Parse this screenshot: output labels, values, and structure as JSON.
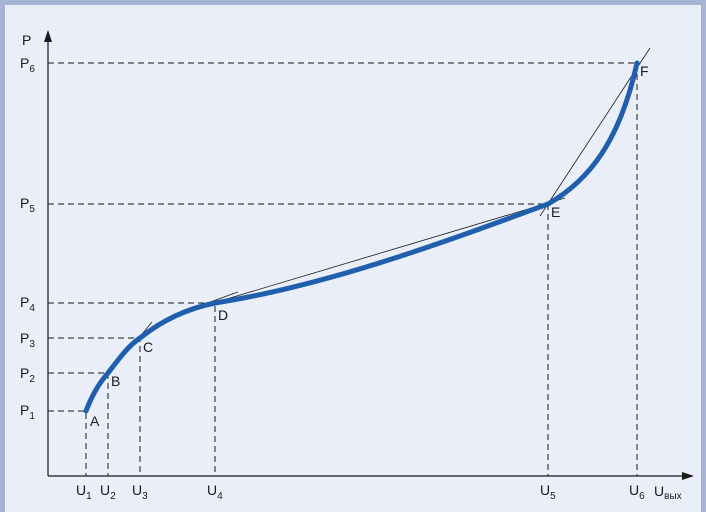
{
  "axes": {
    "y_label": "P",
    "x_label": "U",
    "x_label_sub": "вых"
  },
  "y_ticks": [
    {
      "main": "P",
      "sub": "1"
    },
    {
      "main": "P",
      "sub": "2"
    },
    {
      "main": "P",
      "sub": "3"
    },
    {
      "main": "P",
      "sub": "4"
    },
    {
      "main": "P",
      "sub": "5"
    },
    {
      "main": "P",
      "sub": "6"
    }
  ],
  "x_ticks": [
    {
      "main": "U",
      "sub": "1"
    },
    {
      "main": "U",
      "sub": "2"
    },
    {
      "main": "U",
      "sub": "3"
    },
    {
      "main": "U",
      "sub": "4"
    },
    {
      "main": "U",
      "sub": "5"
    },
    {
      "main": "U",
      "sub": "6"
    }
  ],
  "points": [
    "A",
    "B",
    "C",
    "D",
    "E",
    "F"
  ],
  "colors": {
    "background": "#a7b4d3",
    "panel": "#e9eef8",
    "curve": "#1f5fae",
    "lines": "#1a1a1a"
  }
}
